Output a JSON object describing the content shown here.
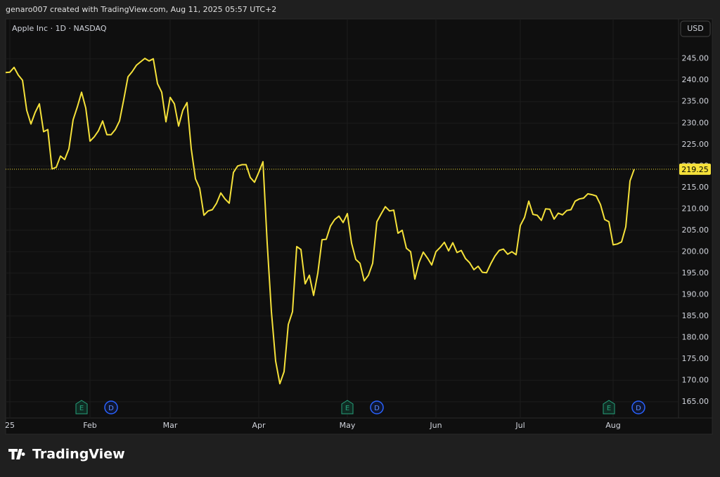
{
  "header": {
    "text": "genaro007 created with TradingView.com, Aug 11, 2025 05:57 UTC+2"
  },
  "chart_data": {
    "type": "line",
    "legend_title": "Apple Inc · 1D · NASDAQ",
    "currency": "USD",
    "color": "#f5e13a",
    "values": [
      241.8,
      241.9,
      243.0,
      241.2,
      240.0,
      233.0,
      229.8,
      232.5,
      234.5,
      228.0,
      228.5,
      219.3,
      219.7,
      222.3,
      221.5,
      224.0,
      230.8,
      233.8,
      237.2,
      233.5,
      225.8,
      226.8,
      228.2,
      230.5,
      227.3,
      227.3,
      228.5,
      230.5,
      235.5,
      240.8,
      242.0,
      243.5,
      244.3,
      245.1,
      244.5,
      245.0,
      239.2,
      237.2,
      230.3,
      236.0,
      234.5,
      229.3,
      233.0,
      234.8,
      224.0,
      217.0,
      214.8,
      208.5,
      209.5,
      209.8,
      211.3,
      213.7,
      212.3,
      211.3,
      218.5,
      220.0,
      220.3,
      220.3,
      217.3,
      216.2,
      218.5,
      221.0,
      202.0,
      186.0,
      174.5,
      169.2,
      172.0,
      183.0,
      186.0,
      201.2,
      200.5,
      192.5,
      194.5,
      189.8,
      195.0,
      202.8,
      202.9,
      206.0,
      207.5,
      208.3,
      206.8,
      208.9,
      202.0,
      198.2,
      197.3,
      193.2,
      194.5,
      197.3,
      207.0,
      208.8,
      210.5,
      209.5,
      209.7,
      204.3,
      205.0,
      200.8,
      200.0,
      193.6,
      197.5,
      199.9,
      198.5,
      196.9,
      200.0,
      201.0,
      202.2,
      200.2,
      202.1,
      199.8,
      200.3,
      198.4,
      197.4,
      195.8,
      196.6,
      195.2,
      195.1,
      197.2,
      199.0,
      200.3,
      200.6,
      199.4,
      200.0,
      199.3,
      206.1,
      208.0,
      211.8,
      208.7,
      208.5,
      207.3,
      210.0,
      209.9,
      207.6,
      209.0,
      208.6,
      209.6,
      209.8,
      211.8,
      212.3,
      212.5,
      213.5,
      213.3,
      213.0,
      211.0,
      207.5,
      207.0,
      201.6,
      201.8,
      202.3,
      205.8,
      216.5,
      219.25
    ],
    "xlim": [
      0,
      159.5
    ],
    "xticks": [
      {
        "value": 1,
        "label": "25"
      },
      {
        "value": 20,
        "label": "Feb"
      },
      {
        "value": 39,
        "label": "Mar"
      },
      {
        "value": 60,
        "label": "Apr"
      },
      {
        "value": 81,
        "label": "May"
      },
      {
        "value": 102,
        "label": "Jun"
      },
      {
        "value": 122,
        "label": "Jul"
      },
      {
        "value": 144,
        "label": "Aug"
      }
    ],
    "ylim": [
      161.2,
      254.3
    ],
    "yticks": [
      {
        "value": 165,
        "label": "165.00"
      },
      {
        "value": 170,
        "label": "170.00"
      },
      {
        "value": 175,
        "label": "175.00"
      },
      {
        "value": 180,
        "label": "180.00"
      },
      {
        "value": 185,
        "label": "185.00"
      },
      {
        "value": 190,
        "label": "190.00"
      },
      {
        "value": 195,
        "label": "195.00"
      },
      {
        "value": 200,
        "label": "200.00"
      },
      {
        "value": 205,
        "label": "205.00"
      },
      {
        "value": 210,
        "label": "210.00"
      },
      {
        "value": 215,
        "label": "215.00"
      },
      {
        "value": 220,
        "label": "220.00"
      },
      {
        "value": 225,
        "label": "225.00"
      },
      {
        "value": 230,
        "label": "230.00"
      },
      {
        "value": 235,
        "label": "235.00"
      },
      {
        "value": 240,
        "label": "240.00"
      },
      {
        "value": 245,
        "label": "245.00"
      }
    ],
    "grid": true,
    "events": [
      {
        "label": "E",
        "x": 18
      },
      {
        "label": "D",
        "x": 25
      },
      {
        "label": "E",
        "x": 81
      },
      {
        "label": "D",
        "x": 88
      },
      {
        "label": "E",
        "x": 143
      },
      {
        "label": "D",
        "x": 150
      }
    ]
  },
  "footer": {
    "brand": "TradingView"
  }
}
